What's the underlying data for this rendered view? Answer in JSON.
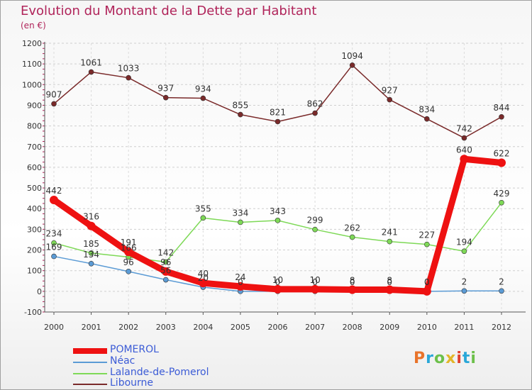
{
  "header": {
    "title": "Evolution du Montant de la Dette par Habitant",
    "unit": "(en €)"
  },
  "logo": {
    "text": "Proxiti",
    "letters": [
      "P",
      "r",
      "o",
      "x",
      "i",
      "t",
      "i"
    ],
    "letter_colors": [
      "#e8732a",
      "#2aa7d8",
      "#6cc04a",
      "#e2b629",
      "#e0402f",
      "#2aa7d8",
      "#6cc04a"
    ]
  },
  "chart_data": {
    "type": "line",
    "title": "Evolution du Montant de la Dette par Habitant",
    "subtitle": "(en €)",
    "xlabel": "",
    "ylabel": "",
    "x": [
      2000,
      2001,
      2002,
      2003,
      2004,
      2005,
      2006,
      2007,
      2008,
      2009,
      2010,
      2011,
      2012
    ],
    "ylim": [
      -100,
      1200
    ],
    "yticks": [
      -100,
      0,
      100,
      200,
      300,
      400,
      500,
      600,
      700,
      800,
      900,
      1000,
      1100,
      1200
    ],
    "grid": "horizontal",
    "legend_placement": "bottom-left",
    "series": [
      {
        "name": "POMEROL",
        "color": "#ee1111",
        "emphasis": "thick",
        "values": [
          442,
          316,
          191,
          96,
          40,
          24,
          10,
          10,
          8,
          8,
          0,
          640,
          622
        ],
        "labels": [
          "442",
          "316",
          "191",
          "96",
          "40",
          "24",
          "10",
          "10",
          "8",
          "8",
          "0",
          "640",
          "622"
        ]
      },
      {
        "name": "Néac",
        "color": "#5b9bd5",
        "emphasis": "thin",
        "values": [
          169,
          134,
          96,
          56,
          20,
          0,
          0,
          0,
          0,
          0,
          0,
          2,
          2
        ],
        "labels": [
          "169",
          "134",
          "96",
          "56",
          "20",
          "0",
          "0",
          "0",
          "0",
          "0",
          "0",
          "2",
          "2"
        ]
      },
      {
        "name": "Lalande-de-Pomerol",
        "color": "#7ed957",
        "emphasis": "thin",
        "values": [
          234,
          185,
          166,
          142,
          355,
          334,
          343,
          299,
          262,
          241,
          227,
          194,
          429
        ],
        "labels": [
          "234",
          "185",
          "166",
          "142",
          "355",
          "334",
          "343",
          "299",
          "262",
          "241",
          "227",
          "194",
          "429"
        ]
      },
      {
        "name": "Libourne",
        "color": "#7a2a2a",
        "emphasis": "thin",
        "values": [
          907,
          1061,
          1033,
          937,
          934,
          855,
          821,
          862,
          1094,
          927,
          834,
          742,
          844
        ],
        "labels": [
          "907",
          "1061",
          "1033",
          "937",
          "934",
          "855",
          "821",
          "862",
          "1094",
          "927",
          "834",
          "742",
          "844"
        ]
      }
    ]
  }
}
